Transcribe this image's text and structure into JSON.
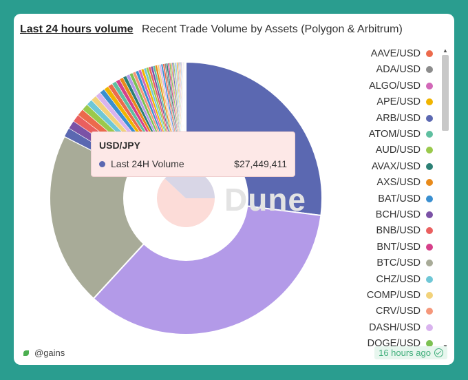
{
  "header": {
    "title": "Last 24 hours volume",
    "subtitle": "Recent Trade Volume by Assets (Polygon & Arbitrum)"
  },
  "footer": {
    "author": "@gains",
    "updated": "16 hours ago"
  },
  "watermark": "Dune",
  "tooltip": {
    "title": "USD/JPY",
    "series": "Last 24H Volume",
    "value": "$27,449,411",
    "color": "#5b68b1"
  },
  "legend": [
    {
      "label": "AAVE/USD",
      "color": "#ec6a4c"
    },
    {
      "label": "ADA/USD",
      "color": "#8c8c8c"
    },
    {
      "label": "ALGO/USD",
      "color": "#d268b8"
    },
    {
      "label": "APE/USD",
      "color": "#f0b400"
    },
    {
      "label": "ARB/USD",
      "color": "#5b68b1"
    },
    {
      "label": "ATOM/USD",
      "color": "#5fbfa0"
    },
    {
      "label": "AUD/USD",
      "color": "#9ac94c"
    },
    {
      "label": "AVAX/USD",
      "color": "#2b8075"
    },
    {
      "label": "AXS/USD",
      "color": "#e88a1a"
    },
    {
      "label": "BAT/USD",
      "color": "#3a8fd0"
    },
    {
      "label": "BCH/USD",
      "color": "#7b52a6"
    },
    {
      "label": "BNB/USD",
      "color": "#ea5f5f"
    },
    {
      "label": "BNT/USD",
      "color": "#d6408a"
    },
    {
      "label": "BTC/USD",
      "color": "#a8ab98"
    },
    {
      "label": "CHZ/USD",
      "color": "#6fc7d6"
    },
    {
      "label": "COMP/USD",
      "color": "#f2d27a"
    },
    {
      "label": "CRV/USD",
      "color": "#f5977a"
    },
    {
      "label": "DASH/USD",
      "color": "#d9b3ee"
    },
    {
      "label": "DOGE/USD",
      "color": "#7cc152"
    }
  ],
  "chart_data": {
    "type": "pie",
    "series_name": "Last 24H Volume",
    "slices": [
      {
        "label": "USD/JPY",
        "value": 27449411,
        "color": "#5b68b1"
      },
      {
        "label": "",
        "value": 35400000,
        "color": "#b39ae8"
      },
      {
        "label": "",
        "value": 21000000,
        "color": "#a8ab98"
      },
      {
        "label": "",
        "value": 1100000,
        "color": "#5b68b1"
      },
      {
        "label": "",
        "value": 1000000,
        "color": "#7b52a6"
      },
      {
        "label": "",
        "value": 900000,
        "color": "#ea5f5f"
      },
      {
        "label": "",
        "value": 850000,
        "color": "#ec6a4c"
      },
      {
        "label": "",
        "value": 800000,
        "color": "#9ac94c"
      },
      {
        "label": "",
        "value": 750000,
        "color": "#6fc7d6"
      },
      {
        "label": "",
        "value": 700000,
        "color": "#f2d27a"
      },
      {
        "label": "",
        "value": 650000,
        "color": "#d9b3ee"
      },
      {
        "label": "",
        "value": 620000,
        "color": "#3a8fd0"
      },
      {
        "label": "",
        "value": 590000,
        "color": "#f0b400"
      },
      {
        "label": "",
        "value": 560000,
        "color": "#ec6a4c"
      },
      {
        "label": "",
        "value": 530000,
        "color": "#5fbfa0"
      },
      {
        "label": "",
        "value": 500000,
        "color": "#d6408a"
      },
      {
        "label": "",
        "value": 470000,
        "color": "#e88a1a"
      },
      {
        "label": "",
        "value": 440000,
        "color": "#2b8075"
      },
      {
        "label": "",
        "value": 420000,
        "color": "#b39ae8"
      },
      {
        "label": "",
        "value": 400000,
        "color": "#7cc152"
      },
      {
        "label": "",
        "value": 380000,
        "color": "#f5977a"
      },
      {
        "label": "",
        "value": 360000,
        "color": "#3a8fd0"
      },
      {
        "label": "",
        "value": 340000,
        "color": "#d268b8"
      },
      {
        "label": "",
        "value": 320000,
        "color": "#f0b400"
      },
      {
        "label": "",
        "value": 300000,
        "color": "#6fc7d6"
      },
      {
        "label": "",
        "value": 290000,
        "color": "#9ac94c"
      },
      {
        "label": "",
        "value": 280000,
        "color": "#ea5f5f"
      },
      {
        "label": "",
        "value": 270000,
        "color": "#7b52a6"
      },
      {
        "label": "",
        "value": 260000,
        "color": "#5fbfa0"
      },
      {
        "label": "",
        "value": 250000,
        "color": "#e88a1a"
      },
      {
        "label": "",
        "value": 240000,
        "color": "#f2d27a"
      },
      {
        "label": "",
        "value": 230000,
        "color": "#d9b3ee"
      },
      {
        "label": "",
        "value": 220000,
        "color": "#3a8fd0"
      },
      {
        "label": "",
        "value": 210000,
        "color": "#ec6a4c"
      },
      {
        "label": "",
        "value": 200000,
        "color": "#8c8c8c"
      },
      {
        "label": "",
        "value": 190000,
        "color": "#2b8075"
      },
      {
        "label": "",
        "value": 180000,
        "color": "#d6408a"
      },
      {
        "label": "",
        "value": 170000,
        "color": "#7cc152"
      },
      {
        "label": "",
        "value": 160000,
        "color": "#f5977a"
      },
      {
        "label": "",
        "value": 150000,
        "color": "#5b68b1"
      },
      {
        "label": "",
        "value": 140000,
        "color": "#9ac94c"
      },
      {
        "label": "",
        "value": 130000,
        "color": "#b39ae8"
      },
      {
        "label": "",
        "value": 120000,
        "color": "#6fc7d6"
      },
      {
        "label": "",
        "value": 110000,
        "color": "#f0b400"
      },
      {
        "label": "",
        "value": 100000,
        "color": "#ea5f5f"
      },
      {
        "label": "",
        "value": 95000,
        "color": "#5fbfa0"
      },
      {
        "label": "",
        "value": 90000,
        "color": "#d268b8"
      },
      {
        "label": "",
        "value": 85000,
        "color": "#e88a1a"
      },
      {
        "label": "",
        "value": 80000,
        "color": "#3a8fd0"
      },
      {
        "label": "",
        "value": 75000,
        "color": "#7b52a6"
      },
      {
        "label": "",
        "value": 70000,
        "color": "#f2d27a"
      },
      {
        "label": "",
        "value": 65000,
        "color": "#d9b3ee"
      },
      {
        "label": "",
        "value": 60000,
        "color": "#8c8c8c"
      },
      {
        "label": "",
        "value": 55000,
        "color": "#7cc152"
      },
      {
        "label": "",
        "value": 50000,
        "color": "#ec6a4c"
      },
      {
        "label": "",
        "value": 45000,
        "color": "#2b8075"
      },
      {
        "label": "",
        "value": 40000,
        "color": "#d6408a"
      },
      {
        "label": "",
        "value": 35000,
        "color": "#5b68b1"
      },
      {
        "label": "",
        "value": 30000,
        "color": "#f5977a"
      },
      {
        "label": "",
        "value": 25000,
        "color": "#9ac94c"
      }
    ],
    "inner_pie": [
      {
        "label": "",
        "value": 62,
        "color": "#fcdcd8"
      },
      {
        "label": "",
        "value": 38,
        "color": "#d8d6e6"
      }
    ],
    "legend_position": "right"
  }
}
